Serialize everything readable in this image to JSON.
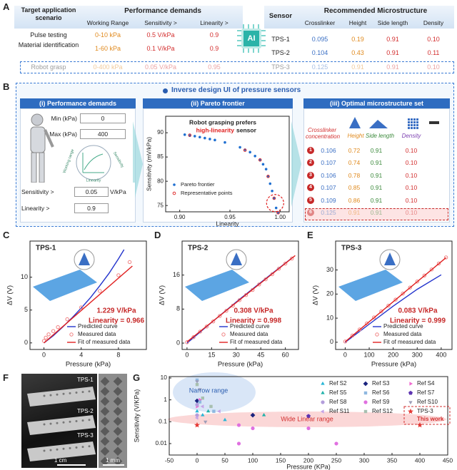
{
  "panel_labels": [
    "A",
    "B",
    "C",
    "D",
    "E",
    "F",
    "G"
  ],
  "panel_a": {
    "demands_table": {
      "header": [
        "Target application scenario",
        "Performance demands"
      ],
      "subheader": [
        "Working Range",
        "Sensitivity >",
        "Linearity >"
      ],
      "rows": [
        [
          "Pulse testing",
          "0-10 kPa",
          "0.5 V/kPa",
          "0.9"
        ],
        [
          "Material identification",
          "1-60 kPa",
          "0.1 V/kPa",
          "0.9"
        ],
        [
          "Robot grasp",
          "0-400 kPa",
          "0.05 V/kPa",
          "0.95"
        ]
      ]
    },
    "ai_label": "AI",
    "structure_table": {
      "header": [
        "Sensor",
        "Recommended Microstructure"
      ],
      "subheader": [
        "Crosslinker",
        "Height",
        "Side length",
        "Density"
      ],
      "rows": [
        [
          "TPS-1",
          "0.095",
          "0.19",
          "0.91",
          "0.10"
        ],
        [
          "TPS-2",
          "0.104",
          "0.43",
          "0.91",
          "0.11"
        ],
        [
          "TPS-3",
          "0.125",
          "0.91",
          "0.91",
          "0.10"
        ]
      ]
    }
  },
  "panel_b": {
    "title": "Inverse design UI of pressure sensors",
    "demands": {
      "heading": "(i) Performance demands",
      "fields": [
        {
          "label": "Min (kPa)",
          "value": "0"
        },
        {
          "label": "Max (kPa)",
          "value": "400"
        },
        {
          "label": "Sensitivity >",
          "value": "0.05",
          "unit": "V/kPa"
        },
        {
          "label": "Linearity >",
          "value": "0.9"
        }
      ],
      "diagram_labels": [
        "Working range",
        "Sensitivity",
        "Linearity"
      ]
    },
    "pareto_heading": "(ii) Pareto frontier",
    "set": {
      "heading": "(iii) Optimal microstructure set",
      "columns": [
        "Crosslinker concentration",
        "Height",
        "Side length",
        "Density"
      ],
      "rows": [
        [
          "1",
          "0.106",
          "0.72",
          "0.91",
          "0.10"
        ],
        [
          "2",
          "0.107",
          "0.74",
          "0.91",
          "0.10"
        ],
        [
          "3",
          "0.106",
          "0.78",
          "0.91",
          "0.10"
        ],
        [
          "4",
          "0.107",
          "0.85",
          "0.91",
          "0.10"
        ],
        [
          "5",
          "0.109",
          "0.86",
          "0.91",
          "0.10"
        ],
        [
          "6",
          "0.125",
          "0.91",
          "0.91",
          "0.10"
        ]
      ]
    }
  },
  "chart_data": [
    {
      "type": "scatter",
      "annotations": [
        "Robot grasping prefers",
        "high-linearity",
        "sensor"
      ],
      "x_label": "Linearity",
      "y_label": "Sensitivity (mV/kPa)",
      "xlim": [
        0.886,
        1.009
      ],
      "xticks": [
        {
          "value": 0.9,
          "label": "0.90"
        },
        {
          "value": 0.95,
          "label": "0.95"
        },
        {
          "value": 1,
          "label": "1.00"
        }
      ],
      "ylim": [
        73.7,
        93.4
      ],
      "yticks": [
        75,
        80,
        85,
        90
      ],
      "legend": "lower-left",
      "series": [
        {
          "name": "Pareto frontier",
          "color": "#1f6fd1",
          "marker": "dot",
          "x": [
            0.905,
            0.91,
            0.915,
            0.92,
            0.925,
            0.93,
            0.935,
            0.945,
            0.96,
            0.965,
            0.97,
            0.975,
            0.98,
            0.983,
            0.986,
            0.988,
            0.99,
            0.992,
            0.994,
            0.996,
            0.998
          ],
          "values": [
            89.6,
            89.4,
            89.3,
            89.1,
            88.9,
            88.7,
            88.5,
            88.0,
            87.0,
            86.5,
            86.0,
            85.2,
            84.4,
            83.5,
            82.5,
            81.0,
            79.5,
            78.0,
            76.5,
            74.5,
            73.5
          ]
        },
        {
          "name": "Representative points",
          "color": "#e03030",
          "marker": "ring",
          "x": [
            0.91,
            0.965,
            0.98,
            0.988,
            0.994,
            0.998
          ],
          "values": [
            89.5,
            86.4,
            84.4,
            81.0,
            76.5,
            73.5
          ]
        }
      ]
    },
    {
      "type": "line",
      "title": "TPS-1",
      "annotations": [
        "1.229 V/kPa",
        "Linearity = 0.966"
      ],
      "x_label": "Pressure (kPa)",
      "y_label": "ΔV (V)",
      "xlim": [
        -1.5,
        11
      ],
      "xticks": [
        0,
        4,
        8
      ],
      "ylim": [
        -1,
        15.5
      ],
      "yticks": [
        0,
        5,
        10
      ],
      "series": [
        {
          "name": "Predicted curve",
          "color": "#2233cc",
          "marker": "line",
          "x": [
            0,
            1,
            2,
            3,
            4,
            5,
            6,
            7,
            8,
            8.6
          ],
          "values": [
            0,
            1.1,
            2.4,
            3.8,
            5.3,
            6.9,
            8.7,
            10.6,
            12.8,
            14.2
          ]
        },
        {
          "name": "Measured data",
          "color": "#f08080",
          "marker": "ring",
          "x": [
            0,
            0.2,
            0.5,
            1,
            1.5,
            2.5,
            4,
            6,
            8,
            9.2
          ],
          "values": [
            0.3,
            0.8,
            1.3,
            1.8,
            2.4,
            3.6,
            5.4,
            7.9,
            10.3,
            12.3
          ]
        },
        {
          "name": "Fit of measured data",
          "color": "#e02020",
          "marker": "line",
          "x": [
            0,
            9.5
          ],
          "values": [
            0,
            11.7
          ]
        }
      ]
    },
    {
      "type": "line",
      "title": "TPS-2",
      "annotations": [
        "0.308 V/kPa",
        "Linearity = 0.998"
      ],
      "x_label": "Pressure (kPa)",
      "y_label": "ΔV (V)",
      "xlim": [
        -3,
        68
      ],
      "xticks": [
        0,
        15,
        30,
        45,
        60
      ],
      "ylim": [
        -1.5,
        24
      ],
      "yticks": [
        0,
        8,
        16
      ],
      "series": [
        {
          "name": "Predicted curve",
          "color": "#2233cc",
          "marker": "line",
          "x": [
            0,
            16,
            32,
            48,
            64
          ],
          "values": [
            0,
            5.2,
            10.3,
            15.2,
            20
          ]
        },
        {
          "name": "Measured data",
          "color": "#f08080",
          "marker": "ring",
          "x": [
            0,
            4,
            8,
            12,
            16,
            20,
            24,
            28,
            32,
            36,
            40,
            44,
            48,
            52,
            56,
            60,
            64
          ],
          "values": [
            0.2,
            1.4,
            2.7,
            3.9,
            5.1,
            6.4,
            7.6,
            8.8,
            10.1,
            11.3,
            12.5,
            13.8,
            15.0,
            16.2,
            17.5,
            18.7,
            19.9
          ]
        },
        {
          "name": "Fit of measured data",
          "color": "#e02020",
          "marker": "line",
          "x": [
            0,
            66
          ],
          "values": [
            0.3,
            20.6
          ]
        }
      ]
    },
    {
      "type": "line",
      "title": "TPS-3",
      "annotations": [
        "0.083 V/kPa",
        "Linearity = 0.999"
      ],
      "x_label": "Pressure (kPa)",
      "y_label": "ΔV (V)",
      "xlim": [
        -40,
        445
      ],
      "xticks": [
        0,
        100,
        200,
        300,
        400
      ],
      "ylim": [
        -3,
        42
      ],
      "yticks": [
        0,
        10,
        20,
        30
      ],
      "series": [
        {
          "name": "Predicted curve",
          "color": "#2233cc",
          "marker": "line",
          "x": [
            0,
            100,
            200,
            300,
            400
          ],
          "values": [
            0,
            7.5,
            15,
            22,
            28
          ]
        },
        {
          "name": "Measured data",
          "color": "#f08080",
          "marker": "ring",
          "x": [
            0,
            30,
            60,
            90,
            120,
            150,
            180,
            210,
            240,
            270,
            300,
            330,
            360,
            390,
            420
          ],
          "values": [
            0.3,
            2.8,
            5.3,
            7.8,
            10.3,
            12.8,
            15.2,
            17.7,
            20.2,
            22.7,
            25.2,
            27.7,
            30.2,
            32.7,
            35.2
          ]
        },
        {
          "name": "Fit of measured data",
          "color": "#e02020",
          "marker": "line",
          "x": [
            0,
            420
          ],
          "values": [
            0.2,
            35.1
          ]
        }
      ]
    },
    {
      "type": "scatter",
      "annotations": [
        "Narrow range",
        "Wide Linear range",
        "This work"
      ],
      "x_label": "Pressure (KPa)",
      "y_label": "Sensitivity (V/KPa)",
      "xlim": [
        -50,
        450
      ],
      "xticks": [
        -50,
        0,
        50,
        100,
        150,
        200,
        250,
        300,
        350,
        400,
        450
      ],
      "ylim": [
        0.003,
        11.6
      ],
      "yscale": "log",
      "yticks": [
        0.01,
        0.1,
        1,
        10
      ],
      "series": [
        {
          "name": "Ref S2",
          "color": "#29b6d6",
          "marker": "tri-up",
          "x": [
            0,
            10,
            50
          ],
          "values": [
            0.3,
            0.2,
            0.12
          ]
        },
        {
          "name": "Ref S3",
          "color": "#1a237e",
          "marker": "diamond",
          "x": [
            100,
            0
          ],
          "values": [
            0.2,
            0.9
          ]
        },
        {
          "name": "Ref S4",
          "color": "#f06bd0",
          "marker": "tri-right",
          "x": [
            5,
            0
          ],
          "values": [
            1,
            0.5
          ]
        },
        {
          "name": "Ref S5",
          "color": "#20b2aa",
          "marker": "tri-up",
          "x": [
            120,
            20
          ],
          "values": [
            0.2,
            0.3
          ]
        },
        {
          "name": "Ref S6",
          "color": "#8fb8e0",
          "marker": "square",
          "x": [
            0,
            5,
            30
          ],
          "values": [
            8,
            0.8,
            0.3
          ]
        },
        {
          "name": "Ref S7",
          "color": "#5e35b1",
          "marker": "pentagon",
          "x": [
            200
          ],
          "values": [
            0.18
          ]
        },
        {
          "name": "Ref S8",
          "color": "#b39ddb",
          "marker": "dot",
          "x": [
            0,
            0
          ],
          "values": [
            0.6,
            0.2
          ]
        },
        {
          "name": "Ref S9",
          "color": "#e070e0",
          "marker": "dot",
          "x": [
            75,
            250,
            200,
            100,
            75
          ],
          "values": [
            0.01,
            0.01,
            0.05,
            0.05,
            0.07
          ]
        },
        {
          "name": "Ref S10",
          "color": "#9e9eb8",
          "marker": "tri-down",
          "x": [
            0,
            5,
            15
          ],
          "values": [
            7,
            3,
            0.1
          ]
        },
        {
          "name": "Ref S11",
          "color": "#c5a3e8",
          "marker": "tri-left",
          "x": [
            10,
            40,
            0
          ],
          "values": [
            0.5,
            0.3,
            0.15
          ]
        },
        {
          "name": "Ref S12",
          "color": "#a8c0b0",
          "marker": "square",
          "x": [
            0,
            10,
            25
          ],
          "values": [
            5,
            1.2,
            0.5
          ]
        },
        {
          "name": "TPS-3",
          "color": "#e53935",
          "marker": "star",
          "x": [
            0,
            400
          ],
          "values": [
            0.07,
            0.07
          ]
        }
      ]
    }
  ],
  "panel_f": {
    "labels": [
      "TPS-1",
      "TPS-2",
      "TPS-3"
    ],
    "scale_bars": [
      "1 cm",
      "1 mm"
    ]
  }
}
